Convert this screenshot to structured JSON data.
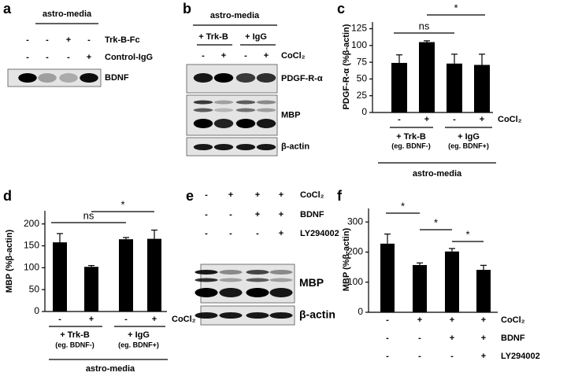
{
  "blots": [
    {
      "panel": "a",
      "header": "astro-media",
      "rows": [
        {
          "label": "Trk-B-Fc",
          "values": [
            "-",
            "-",
            "+",
            "-"
          ]
        },
        {
          "label": "Control-IgG",
          "values": [
            "-",
            "-",
            "-",
            "+"
          ]
        }
      ],
      "bands": [
        "BDNF"
      ]
    },
    {
      "panel": "b",
      "header": "astro-media",
      "groups": [
        "+ Trk-B",
        "+ IgG"
      ],
      "rows": [
        {
          "label": "CoCl₂",
          "values": [
            "-",
            "+",
            "-",
            "+"
          ]
        }
      ],
      "bands": [
        "PDGF-R-α",
        "MBP",
        "β-actin"
      ]
    },
    {
      "panel": "e",
      "rows": [
        {
          "label": "CoCl₂",
          "values": [
            "-",
            "+",
            "+",
            "+"
          ]
        },
        {
          "label": "BDNF",
          "values": [
            "-",
            "-",
            "+",
            "+"
          ]
        },
        {
          "label": "LY294002",
          "values": [
            "-",
            "-",
            "-",
            "+"
          ]
        }
      ],
      "bands": [
        "MBP",
        "β-actin"
      ]
    }
  ],
  "chart_data": [
    {
      "panel": "c",
      "type": "bar",
      "ylabel": "PDGF-R-α (%β-actin)",
      "values": [
        74,
        105,
        73,
        71
      ],
      "errors": [
        12,
        2,
        14,
        16
      ],
      "color": "#000000",
      "ylim": [
        0,
        135
      ],
      "yticks": [
        0,
        25,
        50,
        75,
        100,
        125
      ],
      "conditions": [
        {
          "label": "CoCl₂",
          "values": [
            "-",
            "+",
            "-",
            "+"
          ]
        }
      ],
      "groups": [
        {
          "label": "+ Trk-B",
          "note": "(eg. BDNF-)"
        },
        {
          "label": "+ IgG",
          "note": "(eg. BDNF+)"
        }
      ],
      "group_caption": "astro-media",
      "annotations": [
        "ns",
        "*"
      ]
    },
    {
      "panel": "d",
      "type": "bar",
      "ylabel": "MBP (%β-actin)",
      "values": [
        158,
        102,
        165,
        166
      ],
      "errors": [
        20,
        3,
        4,
        20
      ],
      "color": "#000000",
      "ylim": [
        0,
        230
      ],
      "yticks": [
        0,
        50,
        100,
        150,
        200
      ],
      "conditions": [
        {
          "label": "CoCl₂",
          "values": [
            "-",
            "+",
            "-",
            "+"
          ]
        }
      ],
      "groups": [
        {
          "label": "+ Trk-B",
          "note": "(eg. BDNF-)"
        },
        {
          "label": "+ IgG",
          "note": "(eg. BDNF+)"
        }
      ],
      "group_caption": "astro-media",
      "annotations": [
        "ns",
        "*"
      ]
    },
    {
      "panel": "f",
      "type": "bar",
      "ylabel": "MBP (%β-actin)",
      "values": [
        228,
        157,
        202,
        141
      ],
      "errors": [
        32,
        7,
        10,
        15
      ],
      "color": "#000000",
      "ylim": [
        0,
        345
      ],
      "yticks": [
        0,
        100,
        200,
        300
      ],
      "conditions": [
        {
          "label": "CoCl₂",
          "values": [
            "-",
            "+",
            "+",
            "+"
          ]
        },
        {
          "label": "BDNF",
          "values": [
            "-",
            "-",
            "+",
            "+"
          ]
        },
        {
          "label": "LY294002",
          "values": [
            "-",
            "-",
            "-",
            "+"
          ]
        }
      ],
      "annotations": [
        "*",
        "*",
        "*"
      ]
    }
  ]
}
